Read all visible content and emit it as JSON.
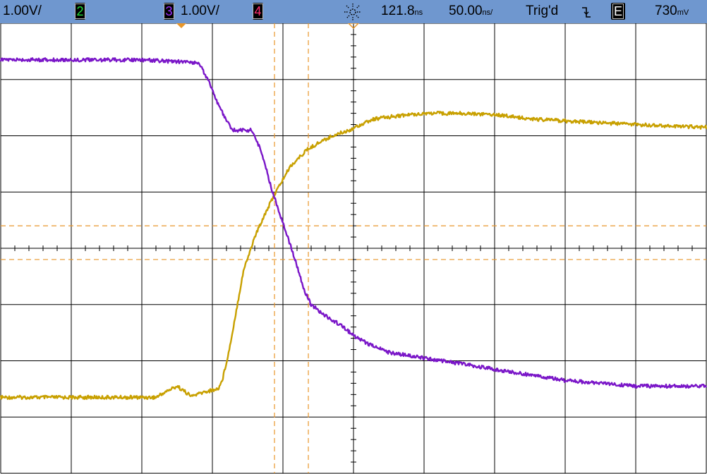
{
  "status_bar": {
    "ch1_scale": "1.00V/",
    "ch2_label": "2",
    "ch3_label": "3",
    "ch3_scale": "1.00V/",
    "ch4_label": "4",
    "delay": "121.8",
    "delay_unit": "ns",
    "timebase": "50.00",
    "timebase_unit": "ns/",
    "trigger_state": "Trig'd",
    "trigger_slope_icon": "falling-edge-icon",
    "trigger_source": "E",
    "trigger_level": "730",
    "trigger_level_unit": "mV",
    "colors": {
      "background": "#6f97cf",
      "ch2_badge_text": "#22e03a",
      "ch3_badge_text": "#a030ff",
      "ch4_badge_text": "#ff3070",
      "trigger_badge_text": "#ffffff"
    }
  },
  "screen": {
    "colors": {
      "grid": "#000000",
      "cursor": "#e8962a",
      "ch1_trace": "#c8a000",
      "ch3_trace": "#7a16c8"
    }
  },
  "chart_data": {
    "type": "line",
    "x_unit": "ns",
    "y_unit": "V",
    "xlim": [
      -250,
      250
    ],
    "ylim": [
      -4,
      4
    ],
    "grid": true,
    "series": [
      {
        "channel": "1",
        "color": "#c8a000",
        "x": [
          -250,
          -150,
          -140,
          -133,
          -125,
          -115,
          -105,
          -96,
          -93,
          -88,
          -83,
          -78,
          -70,
          -63,
          -55,
          -45,
          -33,
          -23,
          -13,
          -3,
          5,
          15,
          30,
          50,
          75,
          100,
          125,
          160,
          200,
          250
        ],
        "y": [
          -2.65,
          -2.65,
          -2.65,
          -2.55,
          -2.45,
          -2.63,
          -2.55,
          -2.5,
          -2.35,
          -1.8,
          -1.1,
          -0.4,
          0.2,
          0.6,
          1.0,
          1.45,
          1.75,
          1.9,
          2.02,
          2.1,
          2.2,
          2.3,
          2.35,
          2.4,
          2.4,
          2.38,
          2.3,
          2.25,
          2.2,
          2.15
        ]
      },
      {
        "channel": "3",
        "color": "#7a16c8",
        "x": [
          -250,
          -150,
          -110,
          -103,
          -95,
          -86,
          -80,
          -72,
          -65,
          -58,
          -50,
          -42,
          -35,
          -30,
          -20,
          -10,
          0,
          10,
          25,
          50,
          75,
          100,
          125,
          150,
          175,
          200,
          250
        ],
        "y": [
          3.35,
          3.35,
          3.3,
          3.0,
          2.5,
          2.1,
          2.1,
          2.1,
          1.7,
          1.05,
          0.45,
          -0.15,
          -0.75,
          -1.0,
          -1.2,
          -1.35,
          -1.55,
          -1.7,
          -1.85,
          -1.95,
          -2.05,
          -2.15,
          -2.25,
          -2.35,
          -2.4,
          -2.45,
          -2.45
        ]
      }
    ],
    "cursors": {
      "x1": -56,
      "x2": -32,
      "y1": 0.4,
      "y2": -0.2
    }
  }
}
